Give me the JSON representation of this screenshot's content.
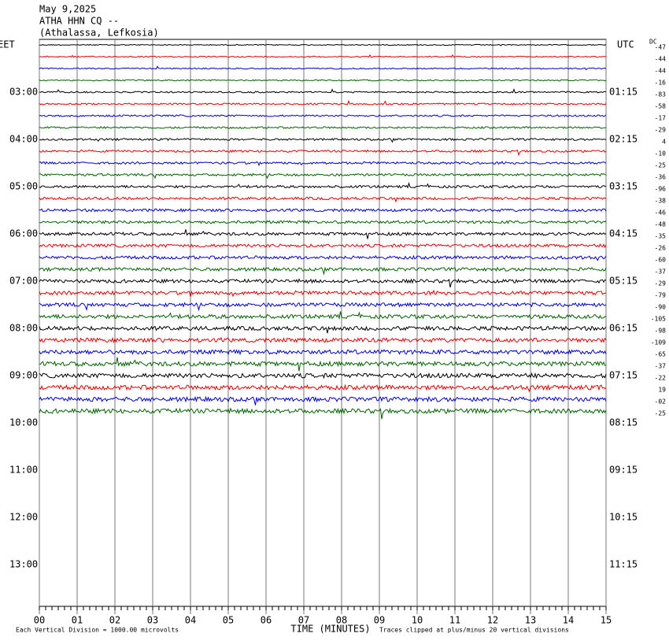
{
  "chart_data": {
    "type": "helicorder",
    "title": [
      "May 9,2025",
      "ATHA HHN CQ --",
      "(Athalassa, Lefkosia)"
    ],
    "left_axis_label": "EET",
    "right_axis_label": "UTC",
    "dc_label": "DC",
    "left_hour_labels": [
      "03:00",
      "04:00",
      "05:00",
      "06:00",
      "07:00",
      "08:00",
      "09:00",
      "10:00",
      "11:00",
      "12:00",
      "13:00"
    ],
    "right_hour_labels": [
      "01:15",
      "02:15",
      "03:15",
      "04:15",
      "05:15",
      "06:15",
      "07:15",
      "08:15",
      "09:15",
      "10:15",
      "11:15"
    ],
    "trace_colors": [
      "#000000",
      "#e00000",
      "#0000d0",
      "#006400"
    ],
    "dc_offsets": [
      -47,
      -44,
      -44,
      -16,
      -83,
      -58,
      -17,
      -29,
      4,
      -10,
      -25,
      -36,
      -96,
      -38,
      -46,
      -48,
      -35,
      -26,
      -60,
      -37,
      -29,
      -79,
      -90,
      -105,
      -98,
      -109,
      -65,
      -37,
      -22,
      19,
      {
        "value": -2,
        "label": "-02"
      },
      -25
    ],
    "xlim": [
      0,
      15
    ],
    "xticks": [
      {
        "value": 0,
        "label": "00"
      },
      {
        "value": 1,
        "label": "01"
      },
      {
        "value": 2,
        "label": "02"
      },
      {
        "value": 3,
        "label": "03"
      },
      {
        "value": 4,
        "label": "04"
      },
      {
        "value": 5,
        "label": "05"
      },
      {
        "value": 6,
        "label": "06"
      },
      {
        "value": 7,
        "label": "07"
      },
      {
        "value": 8,
        "label": "08"
      },
      {
        "value": 9,
        "label": "09"
      },
      10,
      11,
      12,
      13,
      14,
      15
    ],
    "xlabel": "TIME (MINUTES)",
    "scale_note": "Each Vertical Division = 1000.00 microvolts",
    "clip_note": "Traces clipped at plus/minus 20 vertical divisions"
  }
}
